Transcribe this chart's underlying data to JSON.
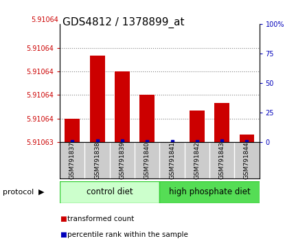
{
  "title": "GDS4812 / 1378899_at",
  "samples": [
    "GSM791837",
    "GSM791838",
    "GSM791839",
    "GSM791840",
    "GSM791841",
    "GSM791842",
    "GSM791843",
    "GSM791844"
  ],
  "transformed_counts": [
    5.910633,
    5.910641,
    5.910639,
    5.910636,
    5.91063,
    5.910634,
    5.910635,
    5.910631
  ],
  "percentile_ranks": [
    0.5,
    1.5,
    1.5,
    0.5,
    0.5,
    0.5,
    1.5,
    0.5
  ],
  "y_min": 5.91063,
  "y_max": 5.910645,
  "left_y_ticks": [
    5.91063,
    5.910633,
    5.910636,
    5.910639,
    5.910642
  ],
  "left_y_tick_labels": [
    "5.91063",
    "5.91064",
    "5.91064",
    "5.91064",
    "5.91064"
  ],
  "bar_color": "#cc0000",
  "percentile_color": "#0000bb",
  "protocol_groups": [
    {
      "label": "control diet",
      "start": 0,
      "end": 3,
      "color": "#ccffcc",
      "edge_color": "#33cc33"
    },
    {
      "label": "high phosphate diet",
      "start": 4,
      "end": 7,
      "color": "#55dd55",
      "edge_color": "#33cc33"
    }
  ],
  "protocol_label": "protocol",
  "legend_items": [
    {
      "color": "#cc0000",
      "label": "transformed count"
    },
    {
      "color": "#0000bb",
      "label": "percentile rank within the sample"
    }
  ],
  "bg_color": "#ffffff",
  "plot_bg_color": "#ffffff",
  "sample_label_bg": "#cccccc",
  "right_y_ticks": [
    0,
    25,
    50,
    75,
    100
  ],
  "right_y_tick_labels": [
    "0",
    "25",
    "50",
    "75",
    "100%"
  ],
  "right_y_color": "#0000bb",
  "left_y_color": "#cc0000",
  "title_fontsize": 11,
  "bar_width": 0.6
}
